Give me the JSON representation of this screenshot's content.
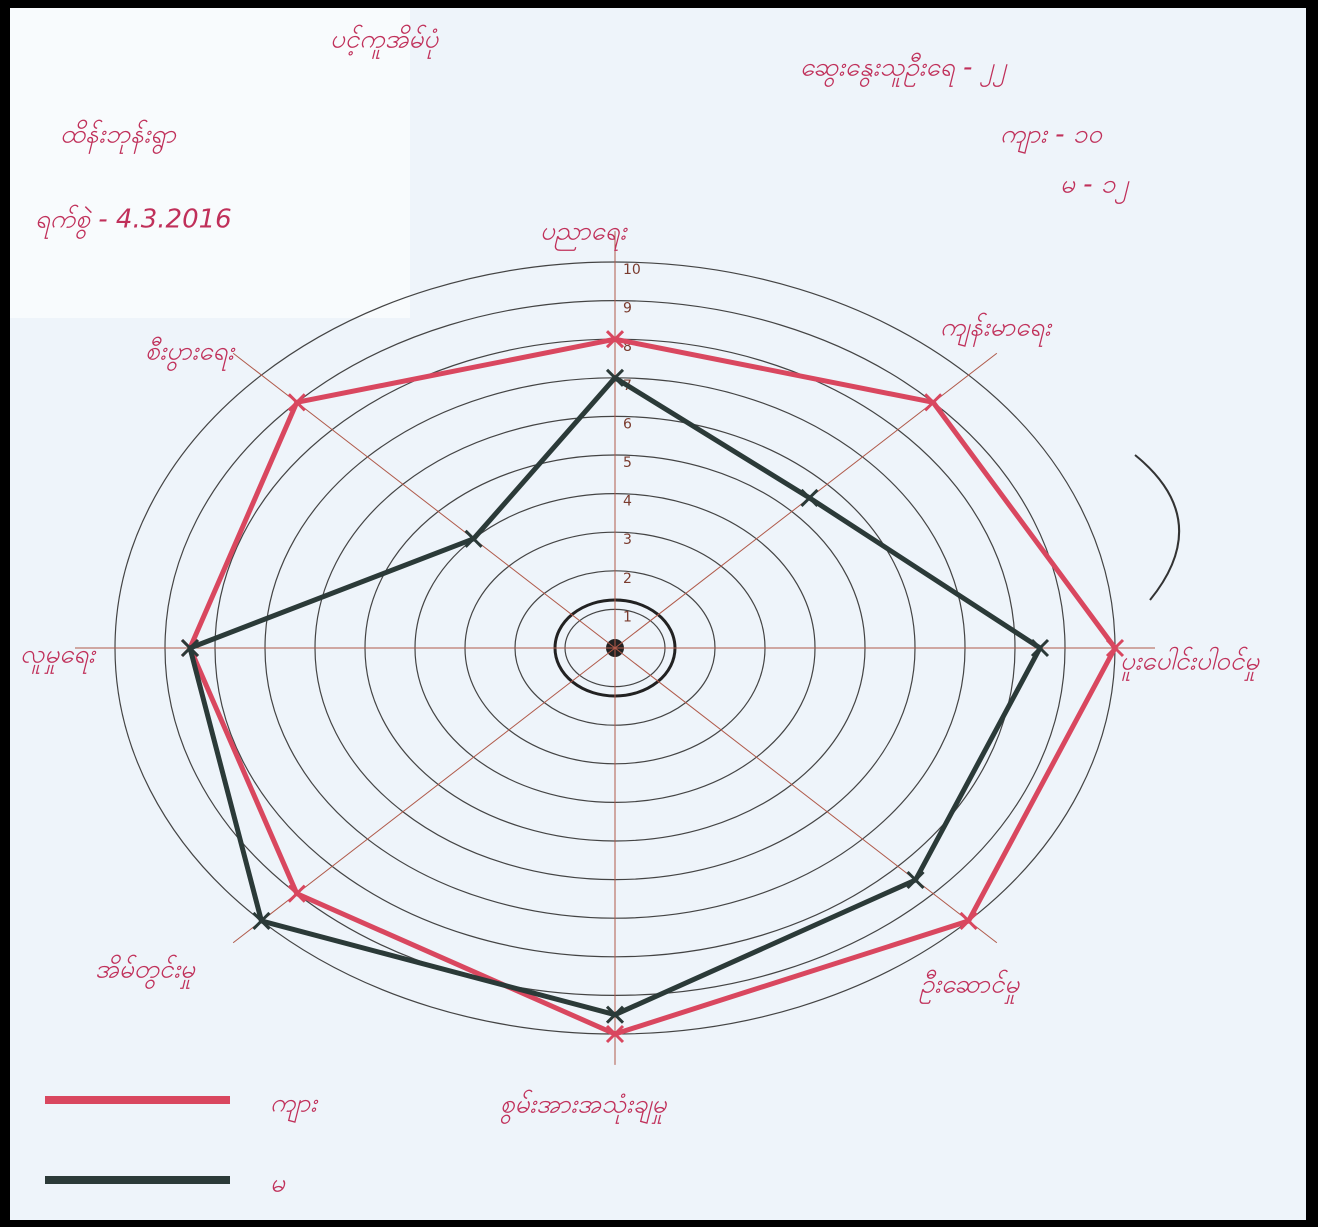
{
  "chart_data": {
    "type": "radar",
    "title": "ပင့်ကူအိမ်ပုံ",
    "annotations": [
      "ဆွေးနွေးသူဦးရေ - ၂၂",
      "ကျား - ၁၀",
      "မ - ၁၂",
      "ထိန်းဘုန်းရွာ",
      "ရက်စွဲ - 4.3.2016"
    ],
    "categories": [
      "ပညာရေး",
      "ကျန်းမာရေး",
      "ပူးပေါင်းပါဝင်မှု",
      "ဦးဆောင်မှု",
      "စွမ်းအားအသုံးချမှု",
      "အိမ်တွင်းမှု",
      "လူမှုရေး",
      "စီးပွားရေး"
    ],
    "series": [
      {
        "name": "ကျား",
        "color": "#d9475f",
        "values": [
          8,
          9,
          10,
          10,
          10,
          9,
          8.5,
          9
        ]
      },
      {
        "name": "မ",
        "color": "#2b3a38",
        "values": [
          7,
          5.5,
          8.5,
          8.5,
          9.5,
          10,
          8.5,
          4
        ]
      }
    ],
    "rlim": [
      0,
      10
    ],
    "rticks": [
      1,
      2,
      3,
      4,
      5,
      6,
      7,
      8,
      9,
      10
    ],
    "grid": true
  }
}
